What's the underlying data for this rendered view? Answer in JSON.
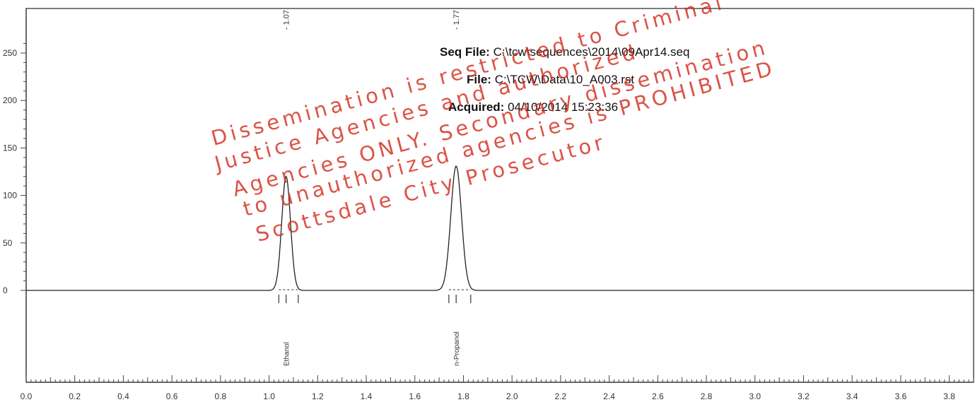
{
  "header": {
    "seq_file_label": "Seq File:",
    "seq_file_value": "C:\\tcw\\sequences\\2014\\09Apr14.seq",
    "file_label": "File:",
    "file_value": "C:\\TCW\\Data\\10_A003.rst",
    "acquired_label": "Acquired:",
    "acquired_value": "04/10/2014 15:23:36"
  },
  "watermark": {
    "lines": [
      "Dissemination is restricted to Criminal",
      "Justice Agencies and authorized",
      "Agencies ONLY. Secondary dissemination",
      "to unauthorized agencies is PROHIBITED",
      "Scottsdale City Prosecutor"
    ]
  },
  "chart_data": {
    "type": "line",
    "title": "",
    "xlabel": "",
    "ylabel": "",
    "xlim": [
      0.0,
      3.9
    ],
    "ylim": [
      -5,
      260
    ],
    "x_ticks": [
      "0.0",
      "0.2",
      "0.4",
      "0.6",
      "0.8",
      "1.0",
      "1.2",
      "1.4",
      "1.6",
      "1.8",
      "2.0",
      "2.2",
      "2.4",
      "2.6",
      "2.8",
      "3.0",
      "3.2",
      "3.4",
      "3.6",
      "3.8"
    ],
    "y_ticks": [
      "0",
      "50",
      "100",
      "150",
      "200",
      "250"
    ],
    "grid": false,
    "baseline": 0,
    "peaks": [
      {
        "rt": 1.07,
        "rt_label": "1.07",
        "height": 120,
        "width": 0.018,
        "name": "Ethanol",
        "integration_start": 1.04,
        "integration_end": 1.12
      },
      {
        "rt": 1.77,
        "rt_label": "1.77",
        "height": 131,
        "width": 0.022,
        "name": "n-Propanol",
        "integration_start": 1.74,
        "integration_end": 1.83
      }
    ]
  }
}
